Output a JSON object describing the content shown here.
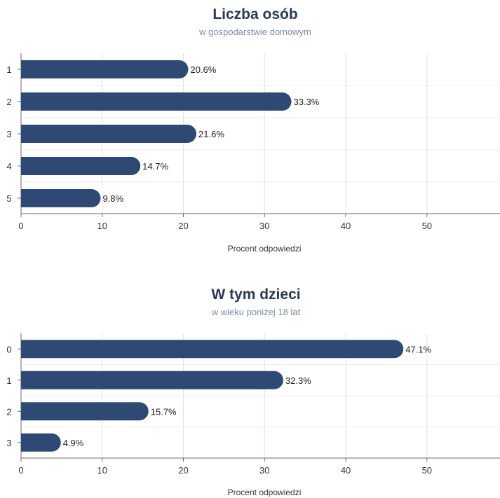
{
  "chart_data": [
    {
      "type": "bar",
      "orientation": "horizontal",
      "title": "Liczba osób",
      "subtitle": "w gospodarstwie domowym",
      "categories": [
        "1",
        "2",
        "3",
        "4",
        "5"
      ],
      "values": [
        20.6,
        33.3,
        21.6,
        14.7,
        9.8
      ],
      "data_labels": [
        "20.6%",
        "33.3%",
        "21.6%",
        "14.7%",
        "9.8%"
      ],
      "xlabel": "Procent odpowiedzi",
      "ylabel": "",
      "xlim": [
        0,
        59
      ],
      "xticks": [
        0,
        10,
        20,
        30,
        40,
        50
      ],
      "grid": true,
      "bar_color": "#2e4a74"
    },
    {
      "type": "bar",
      "orientation": "horizontal",
      "title": "W tym dzieci",
      "subtitle": "w wieku poniżej 18 lat",
      "categories": [
        "0",
        "1",
        "2",
        "3"
      ],
      "values": [
        47.1,
        32.3,
        15.7,
        4.9
      ],
      "data_labels": [
        "47.1%",
        "32.3%",
        "15.7%",
        "4.9%"
      ],
      "xlabel": "Procent odpowiedzi",
      "ylabel": "",
      "xlim": [
        0,
        59
      ],
      "xticks": [
        0,
        10,
        20,
        30,
        40,
        50
      ],
      "grid": true,
      "bar_color": "#2e4a74"
    }
  ]
}
